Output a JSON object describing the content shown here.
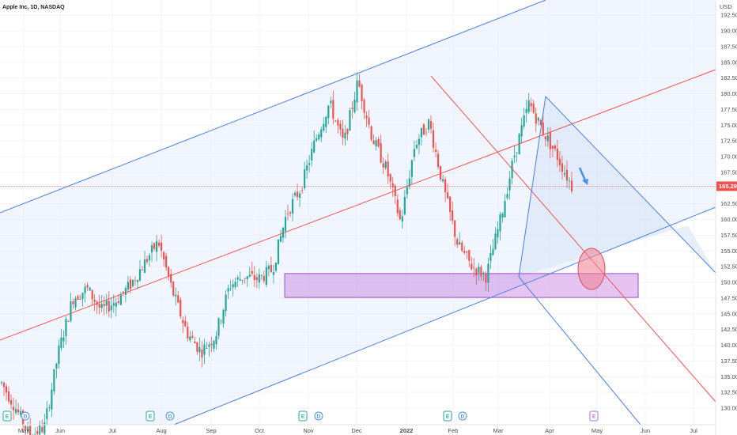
{
  "chart_data": {
    "type": "candlestick",
    "title": "Apple Inc, 1D, NASDAQ",
    "currency": "USD",
    "x_ticks": [
      "May",
      "Jun",
      "Jul",
      "Aug",
      "Sep",
      "Oct",
      "Nov",
      "Dec",
      "2022",
      "Feb",
      "Mar",
      "Apr",
      "May",
      "Jun",
      "Jul"
    ],
    "y_ticks": [
      "130.00",
      "132.50",
      "135.00",
      "137.50",
      "140.00",
      "142.50",
      "145.00",
      "147.50",
      "150.00",
      "152.50",
      "155.00",
      "157.50",
      "160.00",
      "162.50",
      "165.00",
      "167.50",
      "170.00",
      "172.50",
      "175.00",
      "177.50",
      "180.00",
      "182.50",
      "185.00",
      "187.50",
      "190.00",
      "192.50"
    ],
    "ylim": [
      129.5,
      193.5
    ],
    "last_price": 165.29,
    "last_price_label": "165.29",
    "colors": {
      "up": "#26a69a",
      "down": "#ef5350",
      "blue_line": "#4a7fe0",
      "red_line": "#ef5350",
      "zone": "#c77de0",
      "ellipse": "#ef7f8f",
      "arrow": "#4a90e2"
    },
    "support_zone": {
      "low": 147.6,
      "high": 151.4,
      "from": "Oct",
      "to": "May"
    },
    "event_markers": [
      {
        "label": "E",
        "kind": "earnings",
        "color": "#26a69a"
      },
      {
        "label": "D",
        "kind": "dividend",
        "color": "#4a90e2"
      },
      {
        "label": "E",
        "kind": "earnings",
        "color": "#26a69a"
      },
      {
        "label": "D",
        "kind": "dividend",
        "color": "#4a90e2"
      },
      {
        "label": "E",
        "kind": "earnings",
        "color": "#26a69a"
      },
      {
        "label": "D",
        "kind": "dividend",
        "color": "#4a90e2"
      },
      {
        "label": "E",
        "kind": "earnings",
        "color": "#26a69a"
      },
      {
        "label": "D",
        "kind": "dividend",
        "color": "#4a90e2"
      },
      {
        "label": "E",
        "kind": "earnings",
        "color": "#b36bd6"
      }
    ],
    "price_path": [
      [
        "May",
        134.0
      ],
      [
        "May",
        130.0
      ],
      [
        "Jun",
        125.5
      ],
      [
        "Jun",
        127.0
      ],
      [
        "Jul",
        139.0
      ],
      [
        "Jul",
        147.5
      ],
      [
        "Jul",
        149.0
      ],
      [
        "Aug",
        145.5
      ],
      [
        "Aug",
        147.0
      ],
      [
        "Aug",
        149.5
      ],
      [
        "Sep",
        153.0
      ],
      [
        "Sep",
        156.5
      ],
      [
        "Sep",
        148.5
      ],
      [
        "Oct",
        142.0
      ],
      [
        "Oct",
        139.0
      ],
      [
        "Oct",
        141.5
      ],
      [
        "Oct",
        149.5
      ],
      [
        "Nov",
        151.0
      ],
      [
        "Nov",
        150.5
      ],
      [
        "Nov",
        152.0
      ],
      [
        "Nov",
        161.0
      ],
      [
        "Dec",
        165.0
      ],
      [
        "Dec",
        172.5
      ],
      [
        "Dec",
        178.5
      ],
      [
        "Dec",
        172.0
      ],
      [
        "2022",
        182.0
      ],
      [
        "2022",
        173.0
      ],
      [
        "2022",
        168.0
      ],
      [
        "2022",
        159.5
      ],
      [
        "Feb",
        172.0
      ],
      [
        "Feb",
        175.5
      ],
      [
        "Feb",
        165.0
      ],
      [
        "Mar",
        156.0
      ],
      [
        "Mar",
        152.5
      ],
      [
        "Mar",
        151.0
      ],
      [
        "Mar",
        160.0
      ],
      [
        "Apr",
        170.5
      ],
      [
        "Apr",
        178.5
      ],
      [
        "Apr",
        174.0
      ],
      [
        "Apr",
        170.0
      ],
      [
        "Apr",
        165.29
      ]
    ]
  }
}
